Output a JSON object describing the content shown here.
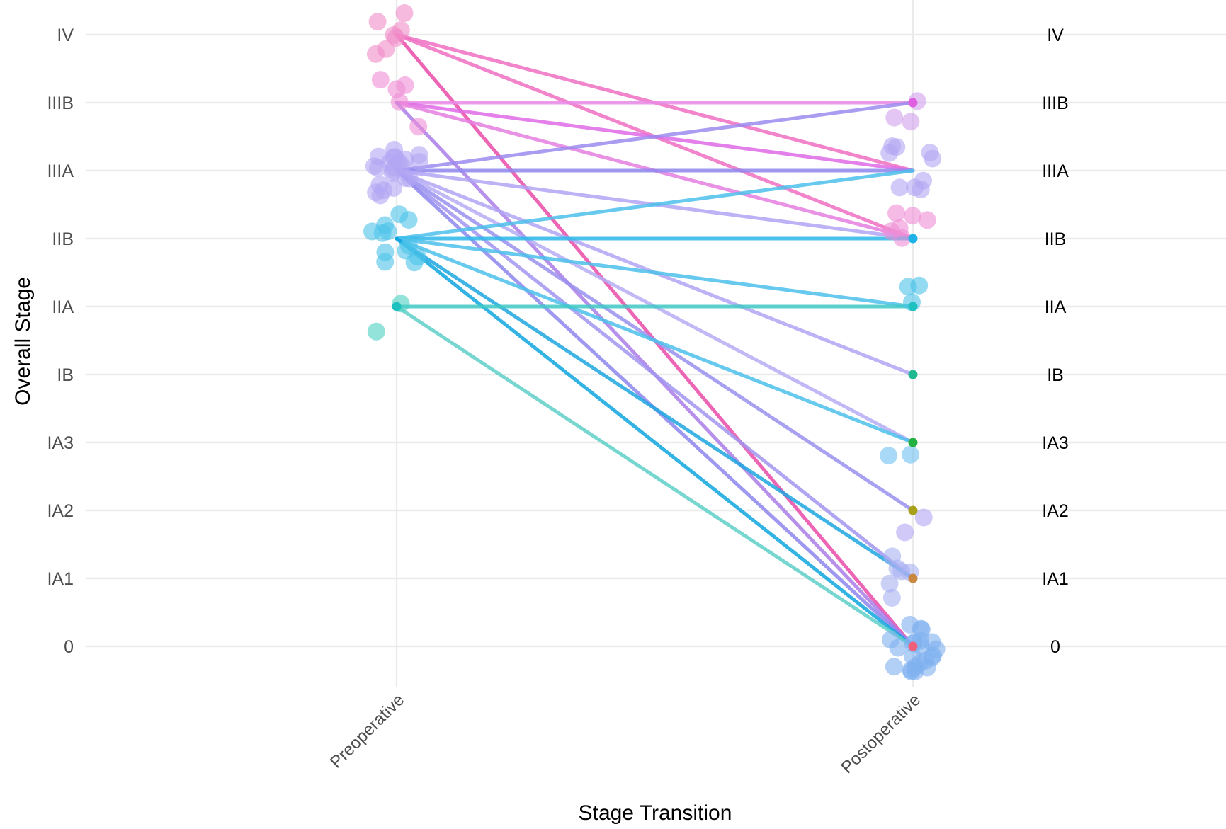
{
  "chart_data": {
    "type": "line",
    "title": "",
    "xlabel": "Stage Transition",
    "ylabel": "Overall Stage",
    "categories": [
      "Preoperative",
      "Postoperative"
    ],
    "stage_levels": [
      "0",
      "IA1",
      "IA2",
      "IA3",
      "IB",
      "IIA",
      "IIB",
      "IIIA",
      "IIIB",
      "IV"
    ],
    "right_labels": [
      "0",
      "IA1",
      "IA2",
      "IA3",
      "IB",
      "IIA",
      "IIB",
      "IIIA",
      "IIIB",
      "IV"
    ],
    "grid": true,
    "legend": "none",
    "transitions": [
      {
        "from": "IV",
        "to": "IIIA",
        "color": "#ee6fc2"
      },
      {
        "from": "IV",
        "to": "IIB",
        "color": "#ee6fc2"
      },
      {
        "from": "IV",
        "to": "0",
        "color": "#ea4aa8"
      },
      {
        "from": "IIIB",
        "to": "IIIB",
        "color": "#e98ae6"
      },
      {
        "from": "IIIB",
        "to": "IIIA",
        "color": "#df6ae6"
      },
      {
        "from": "IIIB",
        "to": "IIB",
        "color": "#e57fe0"
      },
      {
        "from": "IIIB",
        "to": "0",
        "color": "#a97de8"
      },
      {
        "from": "IIIA",
        "to": "IIIB",
        "color": "#9b8bef"
      },
      {
        "from": "IIIA",
        "to": "IIIA",
        "color": "#8f87ee"
      },
      {
        "from": "IIIA",
        "to": "IIB",
        "color": "#b2a5f3"
      },
      {
        "from": "IIIA",
        "to": "IB",
        "color": "#b2a5f3"
      },
      {
        "from": "IIIA",
        "to": "IA3",
        "color": "#b6abf4"
      },
      {
        "from": "IIIA",
        "to": "IA2",
        "color": "#9991ef"
      },
      {
        "from": "IIIA",
        "to": "IA1",
        "color": "#a195f0"
      },
      {
        "from": "IIIA",
        "to": "0",
        "color": "#8d86ee"
      },
      {
        "from": "IIB",
        "to": "IIIA",
        "color": "#4cc0ea"
      },
      {
        "from": "IIB",
        "to": "IIB",
        "color": "#2eb7ea"
      },
      {
        "from": "IIB",
        "to": "IIA",
        "color": "#4cc0ea"
      },
      {
        "from": "IIB",
        "to": "IA3",
        "color": "#4cc0ea"
      },
      {
        "from": "IIB",
        "to": "IA1",
        "color": "#1fa6e0"
      },
      {
        "from": "IIB",
        "to": "0",
        "color": "#0ea6de"
      },
      {
        "from": "IIA",
        "to": "IIA",
        "color": "#3fc9c6"
      },
      {
        "from": "IIA",
        "to": "0",
        "color": "#5fd0c8"
      }
    ],
    "stage_points": [
      {
        "side": "Preoperative",
        "stage": "IV",
        "count": 7,
        "color": "#f08cc8"
      },
      {
        "side": "Preoperative",
        "stage": "IIIB",
        "count": 5,
        "color": "#ee8ed6"
      },
      {
        "side": "Preoperative",
        "stage": "IIIA",
        "count": 22,
        "color": "#b3a6f3"
      },
      {
        "side": "Preoperative",
        "stage": "IIB",
        "count": 12,
        "color": "#4cc3ea"
      },
      {
        "side": "Preoperative",
        "stage": "IIA",
        "count": 2,
        "color": "#4cd0c2"
      },
      {
        "side": "Postoperative",
        "stage": "IIIB",
        "count": 3,
        "color": "#d2a0ec"
      },
      {
        "side": "Postoperative",
        "stage": "IIIA",
        "count": 9,
        "color": "#b3a6f3"
      },
      {
        "side": "Postoperative",
        "stage": "IIB",
        "count": 6,
        "color": "#ee8ed6"
      },
      {
        "side": "Postoperative",
        "stage": "IIA",
        "count": 3,
        "color": "#4cc3ea"
      },
      {
        "side": "Postoperative",
        "stage": "IA3",
        "count": 2,
        "color": "#6ec0f0"
      },
      {
        "side": "Postoperative",
        "stage": "IA2",
        "count": 2,
        "color": "#b3a6f3"
      },
      {
        "side": "Postoperative",
        "stage": "IA1",
        "count": 6,
        "color": "#a9b0f2"
      },
      {
        "side": "Postoperative",
        "stage": "0",
        "count": 22,
        "color": "#7fb0f0"
      }
    ],
    "stage_markers": [
      {
        "stage": "IIIB",
        "color": "#df5fe0"
      },
      {
        "stage": "IIB",
        "color": "#1fb2e8"
      },
      {
        "stage": "IIA",
        "color": "#1fc0c0"
      },
      {
        "stage": "IB",
        "color": "#1fb890"
      },
      {
        "stage": "IA3",
        "color": "#22b040"
      },
      {
        "stage": "IA2",
        "color": "#a8a018"
      },
      {
        "stage": "IA1",
        "color": "#c88840"
      },
      {
        "stage": "0",
        "color": "#f0607a"
      }
    ]
  }
}
